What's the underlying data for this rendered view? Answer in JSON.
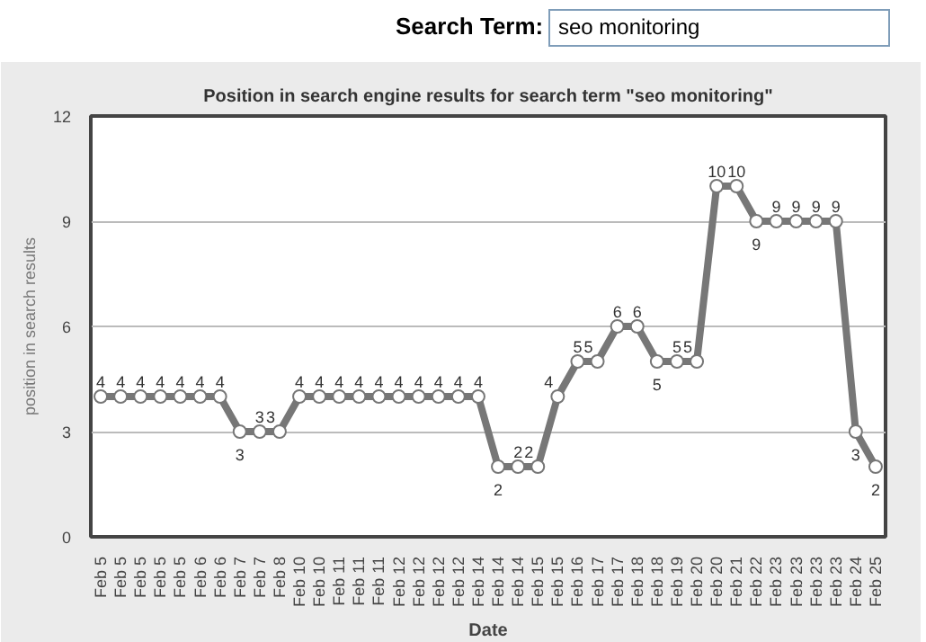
{
  "chart_data": {
    "type": "line",
    "title": "Position in search engine results for search term \"seo monitoring\"",
    "xlabel": "Date",
    "ylabel": "position in search results",
    "annotations": [
      "Search Term:",
      "seo monitoring"
    ],
    "categories": [
      "Feb 5",
      "Feb 5",
      "Feb 5",
      "Feb 5",
      "Feb 5",
      "Feb 6",
      "Feb 6",
      "Feb 7",
      "Feb 7",
      "Feb 8",
      "Feb 10",
      "Feb 10",
      "Feb 11",
      "Feb 11",
      "Feb 11",
      "Feb 12",
      "Feb 12",
      "Feb 12",
      "Feb 12",
      "Feb 14",
      "Feb 14",
      "Feb 14",
      "Feb 15",
      "Feb 15",
      "Feb 16",
      "Feb 17",
      "Feb 17",
      "Feb 18",
      "Feb 18",
      "Feb 19",
      "Feb 20",
      "Feb 20",
      "Feb 21",
      "Feb 22",
      "Feb 23",
      "Feb 23",
      "Feb 23",
      "Feb 23",
      "Feb 24",
      "Feb 25"
    ],
    "series": [
      {
        "color": "#777777",
        "values": [
          4,
          4,
          4,
          4,
          4,
          4,
          4,
          3,
          3,
          3,
          4,
          4,
          4,
          4,
          4,
          4,
          4,
          4,
          4,
          4,
          2,
          2,
          2,
          4,
          5,
          5,
          6,
          6,
          5,
          5,
          5,
          10,
          10,
          9,
          9,
          9,
          9,
          9,
          3,
          2
        ]
      }
    ],
    "ylim": [
      0,
      12
    ],
    "yticks": [
      0,
      3,
      6,
      9,
      12
    ],
    "grid": "y",
    "marker": "circle",
    "line_style": "solid",
    "data_labels": true
  }
}
